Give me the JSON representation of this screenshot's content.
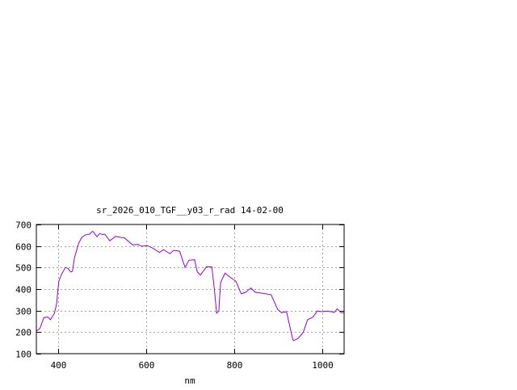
{
  "chart_data": {
    "type": "line",
    "title": "sr_2026_010_TGF__y03_r_rad 14-02-00",
    "xlabel": "nm",
    "ylabel": "",
    "xlim": [
      350,
      1050
    ],
    "ylim": [
      100,
      700
    ],
    "xticks": [
      400,
      600,
      800,
      1000
    ],
    "yticks": [
      100,
      200,
      300,
      400,
      500,
      600,
      700
    ],
    "grid": true,
    "color": "#9400d3",
    "series": [
      {
        "x": [
          350,
          358,
          367,
          376,
          382,
          391,
          396,
          401,
          407,
          416,
          422,
          428,
          432,
          437,
          446,
          453,
          462,
          471,
          477,
          479,
          488,
          494,
          500,
          506,
          517,
          530,
          541,
          550,
          569,
          581,
          590,
          602,
          615,
          630,
          639,
          654,
          662,
          676,
          688,
          697,
          710,
          716,
          723,
          737,
          749,
          755,
          760,
          765,
          769,
          779,
          792,
          804,
          816,
          826,
          838,
          848,
          865,
          884,
          899,
          908,
          919,
          933,
          935,
          945,
          957,
          967,
          979,
          989,
          1000,
          1012,
          1028,
          1034,
          1043,
          1049
        ],
        "y": [
          205,
          217,
          268,
          270,
          258,
          287,
          330,
          436,
          467,
          500,
          496,
          480,
          482,
          549,
          611,
          640,
          652,
          655,
          667,
          667,
          643,
          658,
          653,
          655,
          624,
          645,
          640,
          638,
          605,
          607,
          599,
          602,
          590,
          570,
          583,
          564,
          580,
          576,
          501,
          534,
          536,
          480,
          465,
          503,
          503,
          400,
          288,
          300,
          430,
          474,
          453,
          436,
          378,
          385,
          405,
          385,
          380,
          374,
          305,
          290,
          295,
          168,
          161,
          170,
          199,
          258,
          270,
          298,
          295,
          298,
          292,
          308,
          290,
          290
        ]
      }
    ]
  }
}
